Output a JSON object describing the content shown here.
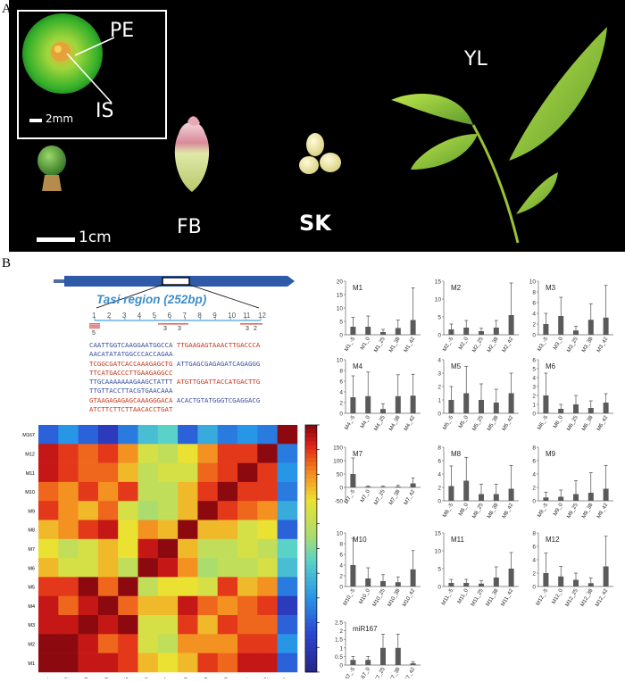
{
  "panel_a": {
    "label": "A",
    "labels": {
      "pe": "PE",
      "is": "IS",
      "fb": "FB",
      "sk": "SK",
      "yl": "YL"
    },
    "scale_inset": "2mm",
    "scale_main": "1cm"
  },
  "panel_b": {
    "label": "B",
    "tasi_title": "Tasi region (252bp)",
    "tasi_numbers": [
      "1",
      "2",
      "3",
      "4",
      "5",
      "6",
      "7",
      "8",
      "9",
      "10",
      "11",
      "12"
    ],
    "tasi_counts": [
      "5",
      "3",
      "3",
      "3",
      "2"
    ],
    "sequence": [
      [
        {
          "c": "b",
          "t": "CAATTGGTCAAGGAATGGCCA "
        },
        {
          "c": "r",
          "t": "TTGAAGAGTAAACTTGACCCA "
        },
        {
          "c": "b",
          "t": "AACATATATGGCCCACCAGAA"
        }
      ],
      [
        {
          "c": "r",
          "t": "TCGGCGATCACCAAAGAGCTG "
        },
        {
          "c": "b",
          "t": "ATTGAGCGAGAGATCAGAGGG "
        },
        {
          "c": "r",
          "t": "TTCATGACCCTTGAAGAGGCC"
        }
      ],
      [
        {
          "c": "b",
          "t": "TTGCAAAAAAAGAAGCTATTT "
        },
        {
          "c": "r",
          "t": "ATGTTGGATTACCATGACTTG "
        },
        {
          "c": "b",
          "t": "TTGTTACCTTACGTGAACAAA"
        }
      ],
      [
        {
          "c": "r",
          "t": "GTAAGAGAGAGCAAAGGGACA "
        },
        {
          "c": "b",
          "t": "ACACTGTATGGGTCGAGGACG "
        },
        {
          "c": "r",
          "t": "ATCTTCTTCTTAACACCTGAT"
        }
      ]
    ]
  },
  "chart_data": [
    {
      "type": "heatmap",
      "rows": [
        "M167",
        "M12",
        "M11",
        "M10",
        "M9",
        "M8",
        "M7",
        "M6",
        "M5",
        "M4",
        "M3",
        "M2",
        "M1"
      ],
      "columns": [
        "M1",
        "M2",
        "M3",
        "M4",
        "M5",
        "M6",
        "M7",
        "M8",
        "M9",
        "M10",
        "M11",
        "M12",
        "M167"
      ],
      "values": [
        [
          -0.6,
          -0.4,
          -0.6,
          -0.8,
          -0.5,
          -0.2,
          -0.1,
          -0.6,
          -0.3,
          -0.5,
          -0.4,
          -0.5,
          1
        ],
        [
          0.9,
          0.8,
          0.7,
          0.8,
          0.6,
          0.3,
          0.2,
          0.4,
          0.6,
          0.8,
          0.8,
          1,
          -0.5
        ],
        [
          0.9,
          0.8,
          0.7,
          0.7,
          0.5,
          0.2,
          0.3,
          0.3,
          0.7,
          0.8,
          1,
          0.8,
          -0.4
        ],
        [
          0.7,
          0.6,
          0.8,
          0.6,
          0.8,
          0.2,
          0.2,
          0.5,
          0.8,
          1,
          0.8,
          0.8,
          -0.5
        ],
        [
          0.8,
          0.6,
          0.5,
          0.7,
          0.3,
          0.1,
          0.2,
          0.5,
          1,
          0.8,
          0.7,
          0.6,
          -0.3
        ],
        [
          0.5,
          0.6,
          0.8,
          0.9,
          0.4,
          0.6,
          0.5,
          1,
          0.5,
          0.5,
          0.3,
          0.4,
          -0.6
        ],
        [
          0.4,
          0.2,
          0.3,
          0.5,
          0.4,
          0.9,
          1,
          0.5,
          0.2,
          0.2,
          0.3,
          0.2,
          -0.1
        ],
        [
          0.5,
          0.3,
          0.3,
          0.5,
          0.2,
          1,
          0.9,
          0.6,
          0.1,
          0.2,
          0.2,
          0.3,
          -0.2
        ],
        [
          0.8,
          0.8,
          1,
          0.7,
          1,
          0.2,
          0.4,
          0.4,
          0.3,
          0.8,
          0.5,
          0.6,
          -0.5
        ],
        [
          0.9,
          0.7,
          0.9,
          1,
          0.7,
          0.5,
          0.5,
          0.9,
          0.7,
          0.6,
          0.7,
          0.8,
          -0.8
        ],
        [
          0.9,
          0.9,
          1,
          0.9,
          1,
          0.3,
          0.3,
          0.8,
          0.5,
          0.8,
          0.7,
          0.7,
          -0.6
        ],
        [
          1,
          1,
          0.9,
          0.7,
          0.8,
          0.3,
          0.2,
          0.6,
          0.6,
          0.6,
          0.8,
          0.8,
          -0.4
        ],
        [
          1,
          1,
          0.9,
          0.9,
          0.8,
          0.5,
          0.4,
          0.5,
          0.8,
          0.7,
          0.9,
          0.9,
          -0.6
        ]
      ],
      "colorbar_ticks": [
        "1",
        "0.8",
        "0.6",
        "0.4",
        "0.2",
        "0",
        "-0.2",
        "-0.4",
        "-0.6",
        "-0.8",
        "-1"
      ],
      "vmin": -1,
      "vmax": 1
    },
    {
      "type": "bar",
      "title": "M1",
      "categories": [
        "M1_-5",
        "M1_0",
        "M1_25",
        "M1_38",
        "M1_42"
      ],
      "values": [
        3,
        3,
        1,
        2.5,
        5.5
      ],
      "errors": [
        3.5,
        4,
        1,
        3,
        12
      ],
      "ylim": [
        0,
        20
      ],
      "yticks": [
        "0",
        "5",
        "10",
        "15",
        "20"
      ]
    },
    {
      "type": "bar",
      "title": "M2",
      "categories": [
        "M2_-5",
        "M2_0",
        "M2_25",
        "M2_38",
        "M2_42"
      ],
      "values": [
        1.5,
        2,
        1,
        2,
        5.5
      ],
      "errors": [
        1.5,
        2,
        0.8,
        2,
        9
      ],
      "ylim": [
        0,
        15
      ],
      "yticks": [
        "0",
        "5",
        "10",
        "15"
      ]
    },
    {
      "type": "bar",
      "title": "M3",
      "categories": [
        "M3_-5",
        "M3_0",
        "M3_25",
        "M3_38",
        "M3_42"
      ],
      "values": [
        2,
        3.5,
        0.8,
        2.8,
        3.2
      ],
      "errors": [
        2,
        3.5,
        0.8,
        3,
        6
      ],
      "ylim": [
        0,
        10
      ],
      "yticks": [
        "0",
        "2",
        "4",
        "6",
        "8",
        "10"
      ]
    },
    {
      "type": "bar",
      "title": "M4",
      "categories": [
        "M4_-5",
        "M4_0",
        "M4_25",
        "M4_38",
        "M4_42"
      ],
      "values": [
        3,
        3.2,
        0.8,
        3.2,
        3.3
      ],
      "errors": [
        4,
        4.5,
        1,
        4,
        4
      ],
      "ylim": [
        0,
        10
      ],
      "yticks": [
        "0",
        "2",
        "4",
        "6",
        "8",
        "10"
      ]
    },
    {
      "type": "bar",
      "title": "M5",
      "categories": [
        "M5_-5",
        "M5_0",
        "M5_25",
        "M5_38",
        "M5_42"
      ],
      "values": [
        1,
        1.5,
        1,
        0.8,
        1.5
      ],
      "errors": [
        1,
        2,
        1.2,
        1,
        1.5
      ],
      "ylim": [
        0,
        4
      ],
      "yticks": [
        "0",
        "1",
        "2",
        "3",
        "4"
      ]
    },
    {
      "type": "bar",
      "title": "M6",
      "categories": [
        "M6_-5",
        "M6_0",
        "M6_25",
        "M6_38",
        "M6_42"
      ],
      "values": [
        2,
        0.5,
        1,
        0.6,
        1.2
      ],
      "errors": [
        2.5,
        0.5,
        1,
        0.8,
        1
      ],
      "ylim": [
        0,
        6
      ],
      "yticks": [
        "0",
        "1",
        "2",
        "3",
        "4",
        "5",
        "6"
      ]
    },
    {
      "type": "bar",
      "title": "M7",
      "categories": [
        "M7_-5",
        "M7_0",
        "M7_25",
        "M7_38",
        "M7_42"
      ],
      "values": [
        50,
        3,
        2,
        3,
        15
      ],
      "errors": [
        60,
        3,
        3,
        5,
        20
      ],
      "ylim": [
        -50,
        150
      ],
      "yticks": [
        "-50",
        "0",
        "50",
        "100",
        "150"
      ]
    },
    {
      "type": "bar",
      "title": "M8",
      "categories": [
        "M8_-5",
        "M8_0",
        "M8_25",
        "M8_38",
        "M8_42"
      ],
      "values": [
        2.2,
        3,
        1,
        1,
        1.8
      ],
      "errors": [
        3,
        3.5,
        1.5,
        1.5,
        3.5
      ],
      "ylim": [
        0,
        8
      ],
      "yticks": [
        "0",
        "2",
        "4",
        "6",
        "8"
      ]
    },
    {
      "type": "bar",
      "title": "M9",
      "categories": [
        "M9_-5",
        "M9_0",
        "M9_25",
        "M9_38",
        "M9_42"
      ],
      "values": [
        0.5,
        0.6,
        1,
        1.2,
        1.8
      ],
      "errors": [
        0.8,
        1,
        2,
        3,
        3.5
      ],
      "ylim": [
        0,
        8
      ],
      "yticks": [
        "0",
        "2",
        "4",
        "6",
        "8"
      ]
    },
    {
      "type": "bar",
      "title": "M10",
      "categories": [
        "M10_-5",
        "M10_0",
        "M10_25",
        "M10_38",
        "M10_42"
      ],
      "values": [
        4,
        1.5,
        1,
        0.8,
        3.2
      ],
      "errors": [
        5,
        2,
        1.2,
        1,
        3.5
      ],
      "ylim": [
        0,
        10
      ],
      "yticks": [
        "0",
        "2",
        "4",
        "6",
        "8",
        "10"
      ]
    },
    {
      "type": "bar",
      "title": "M11",
      "categories": [
        "M11_-5",
        "M11_0",
        "M11_25",
        "M11_38",
        "M11_42"
      ],
      "values": [
        1,
        1,
        0.8,
        2.5,
        5
      ],
      "errors": [
        1,
        1,
        0.8,
        3,
        4.5
      ],
      "ylim": [
        0,
        15
      ],
      "yticks": [
        "0",
        "5",
        "10",
        "15"
      ]
    },
    {
      "type": "bar",
      "title": "M12",
      "categories": [
        "M12_-5",
        "M12_0",
        "M12_25",
        "M12_38",
        "M12_42"
      ],
      "values": [
        2,
        1.5,
        1,
        0.5,
        3
      ],
      "errors": [
        3,
        1.5,
        1,
        0.8,
        4.5
      ],
      "ylim": [
        0,
        8
      ],
      "yticks": [
        "0",
        "2",
        "4",
        "6",
        "8"
      ]
    },
    {
      "type": "bar",
      "title": "miR167",
      "categories": [
        "M167_-5",
        "M167_0",
        "M167_25",
        "M167_38",
        "M167_42"
      ],
      "values": [
        0.3,
        0.3,
        1,
        1,
        0.1
      ],
      "errors": [
        0.2,
        0.2,
        0.8,
        0.8,
        0.1
      ],
      "ylim": [
        0,
        2.5
      ],
      "yticks": [
        "0",
        "0.5",
        "1",
        "1.5",
        "2",
        "2.5"
      ]
    }
  ]
}
